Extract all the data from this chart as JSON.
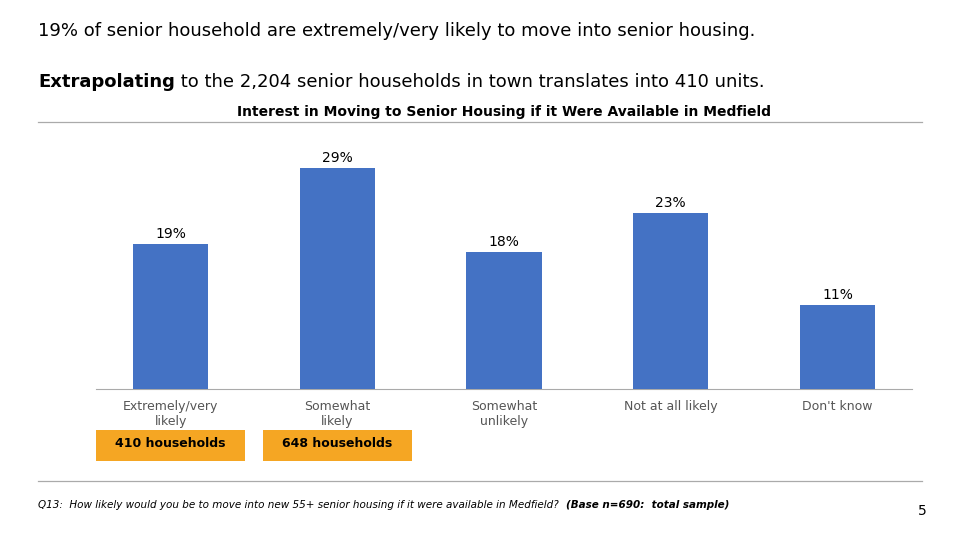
{
  "title": "Interest in Moving to Senior Housing if it Were Available in Medfield",
  "header_line1": "19% of senior household are extremely/very likely to move into senior housing.",
  "header_line2_bold": "Extrapolating",
  "header_line2_rest": " to the 2,204 senior households in town translates into 410 units.",
  "categories": [
    "Extremely/very\nlikely",
    "Somewhat\nlikely",
    "Somewhat\nunlikely",
    "Not at all likely",
    "Don't know"
  ],
  "values": [
    19,
    29,
    18,
    23,
    11
  ],
  "bar_color": "#4472C4",
  "badge1_label": "410 households",
  "badge2_label": "648 households",
  "badge_color": "#F5A623",
  "badge_text_color": "#000000",
  "footnote_regular": "Q13:  How likely would you be to move into new 55+ senior housing if it were available in Medfield?  ",
  "footnote_bold": "(Base n=690:  total sample)",
  "page_num": "5",
  "title_fontsize": 10,
  "header_fontsize": 13,
  "bar_label_fontsize": 10,
  "xlabel_fontsize": 9,
  "footnote_fontsize": 7.5,
  "background_color": "#ffffff"
}
